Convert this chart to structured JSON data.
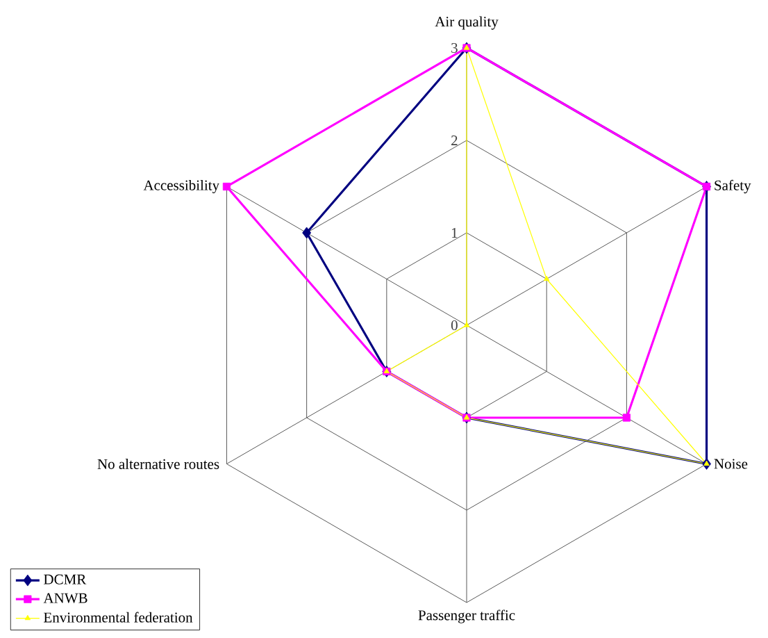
{
  "chart_data": {
    "type": "radar",
    "categories": [
      "Air quality",
      "Safety",
      "Noise",
      "Passenger traffic",
      "No alternative routes",
      "Accessibility"
    ],
    "series": [
      {
        "name": "DCMR",
        "color": "#000080",
        "marker": "diamond",
        "values": [
          3,
          3,
          3,
          1,
          1,
          2
        ]
      },
      {
        "name": "ANWB",
        "color": "#ff00ff",
        "marker": "square",
        "values": [
          3,
          3,
          2,
          1,
          1,
          3
        ]
      },
      {
        "name": "Environmental federation",
        "color": "#ffff00",
        "marker": "triangle",
        "values": [
          3,
          1,
          3,
          1,
          1,
          0
        ]
      }
    ],
    "ylim": [
      0,
      3
    ],
    "yticks": [
      0,
      1,
      2,
      3
    ],
    "grid": true,
    "legend": "bottom left"
  }
}
